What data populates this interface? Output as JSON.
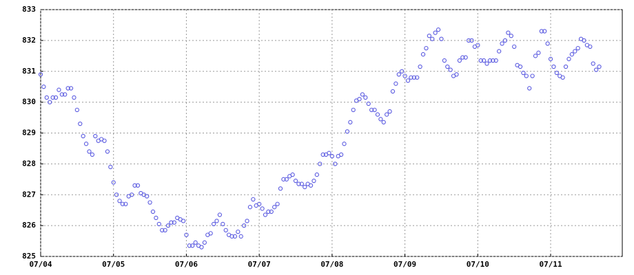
{
  "chart_data": {
    "type": "scatter",
    "color": "#5a5ae0",
    "grid": true,
    "x": [
      0,
      1,
      2,
      3,
      4,
      5,
      6,
      7,
      8,
      9,
      10,
      11,
      12,
      13,
      14,
      15,
      16,
      17,
      18,
      19,
      20,
      21,
      22,
      23,
      24,
      25,
      26,
      27,
      28,
      29,
      30,
      31,
      32,
      33,
      34,
      35,
      36,
      37,
      38,
      39,
      40,
      41,
      42,
      43,
      44,
      45,
      46,
      47,
      48,
      49,
      50,
      51,
      52,
      53,
      54,
      55,
      56,
      57,
      58,
      59,
      60,
      61,
      62,
      63,
      64,
      65,
      66,
      67,
      68,
      69,
      70,
      71,
      72,
      73,
      74,
      75,
      76,
      77,
      78,
      79,
      80,
      81,
      82,
      83,
      84,
      85,
      86,
      87,
      88,
      89,
      90,
      91,
      92,
      93,
      94,
      95,
      96,
      97,
      98,
      99,
      100,
      101,
      102,
      103,
      104,
      105,
      106,
      107,
      108,
      109,
      110,
      111,
      112,
      113,
      114,
      115,
      116,
      117,
      118,
      119,
      120,
      121,
      122,
      123,
      124,
      125,
      126,
      127,
      128,
      129,
      130,
      131,
      132,
      133,
      134,
      135,
      136,
      137,
      138,
      139,
      140,
      141,
      142,
      143,
      144,
      145,
      146,
      147,
      148,
      149,
      150,
      151,
      152,
      153,
      154,
      155,
      156,
      157,
      158,
      159,
      160,
      161,
      162,
      163,
      164,
      165,
      166,
      167,
      168,
      169,
      170,
      171,
      172,
      173,
      174,
      175,
      176,
      177,
      178,
      179,
      180,
      181,
      182,
      183,
      184
    ],
    "values": [
      830.9,
      830.5,
      830.15,
      830.0,
      830.15,
      830.15,
      830.4,
      830.25,
      830.25,
      830.45,
      830.45,
      830.15,
      829.75,
      829.3,
      828.9,
      828.65,
      828.4,
      828.3,
      828.9,
      828.75,
      828.8,
      828.75,
      828.4,
      827.9,
      827.4,
      827.0,
      826.8,
      826.7,
      826.7,
      826.95,
      827.0,
      827.3,
      827.3,
      827.05,
      827.0,
      826.95,
      826.75,
      826.45,
      826.25,
      826.05,
      825.85,
      825.85,
      826.0,
      826.1,
      826.1,
      826.25,
      826.2,
      826.15,
      825.7,
      825.35,
      825.35,
      825.45,
      825.35,
      825.3,
      825.45,
      825.7,
      825.75,
      826.05,
      826.15,
      826.35,
      826.05,
      825.85,
      825.7,
      825.65,
      825.65,
      825.8,
      825.65,
      826.0,
      826.15,
      826.6,
      826.85,
      826.65,
      826.7,
      826.55,
      826.35,
      826.45,
      826.45,
      826.6,
      826.7,
      827.2,
      827.5,
      827.5,
      827.6,
      827.65,
      827.45,
      827.35,
      827.35,
      827.25,
      827.35,
      827.3,
      827.45,
      827.65,
      828.0,
      828.3,
      828.3,
      828.35,
      828.25,
      828.0,
      828.25,
      828.3,
      828.65,
      829.05,
      829.35,
      829.75,
      830.05,
      830.1,
      830.25,
      830.15,
      829.95,
      829.75,
      829.75,
      829.6,
      829.45,
      829.35,
      829.6,
      829.7,
      830.35,
      830.6,
      830.9,
      831.0,
      830.85,
      830.7,
      830.8,
      830.8,
      830.8,
      831.15,
      831.55,
      831.75,
      832.15,
      832.05,
      832.25,
      832.35,
      832.05,
      831.35,
      831.15,
      831.05,
      830.85,
      830.9,
      831.35,
      831.45,
      831.45,
      832.0,
      832.0,
      831.8,
      831.85,
      831.35,
      831.35,
      831.25,
      831.35,
      831.35,
      831.35,
      831.65,
      831.9,
      832.0,
      832.25,
      832.15,
      831.8,
      831.2,
      831.15,
      830.95,
      830.85,
      830.45,
      830.85,
      831.5,
      831.6,
      832.3,
      832.3,
      831.9,
      831.4,
      831.15,
      830.95,
      830.85,
      830.8,
      831.15,
      831.4,
      831.55,
      831.65,
      831.75,
      832.05,
      832.0,
      831.85,
      831.8,
      831.25,
      831.05,
      831.15
    ],
    "xlim": [
      0,
      191.6
    ],
    "xticks": [
      {
        "value": 0,
        "label": "07/04"
      },
      {
        "value": 24,
        "label": "07/05"
      },
      {
        "value": 48,
        "label": "07/06"
      },
      {
        "value": 72,
        "label": "07/07"
      },
      {
        "value": 96,
        "label": "07/08"
      },
      {
        "value": 120,
        "label": "07/09"
      },
      {
        "value": 144,
        "label": "07/10"
      },
      {
        "value": 168,
        "label": "07/11"
      }
    ],
    "ylim": [
      825,
      833
    ],
    "yticks": [
      825,
      826,
      827,
      828,
      829,
      830,
      831,
      832,
      833
    ]
  }
}
